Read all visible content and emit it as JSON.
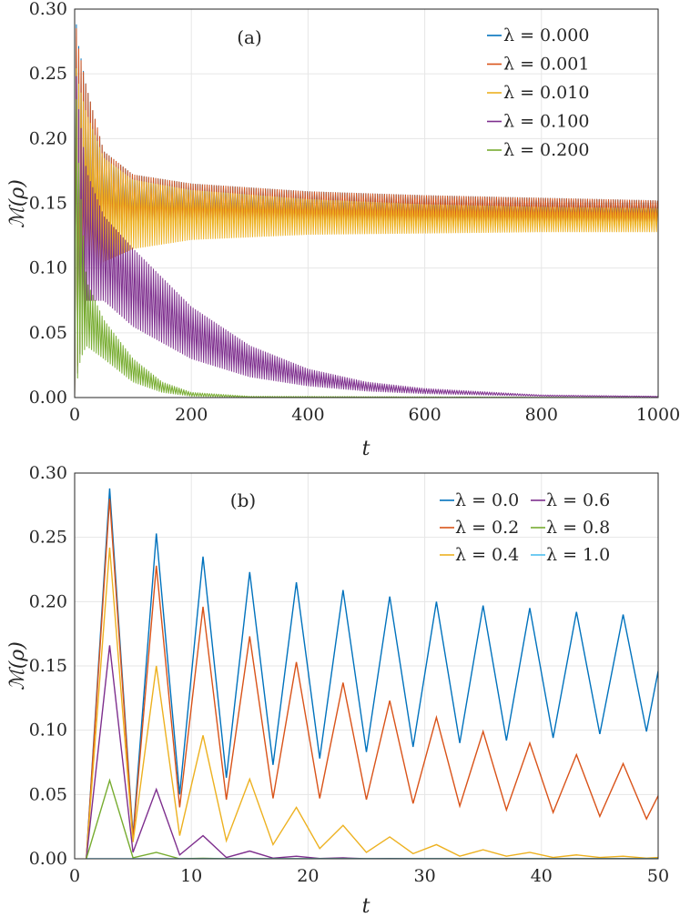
{
  "chart_data": [
    {
      "type": "line",
      "panel_label": "(a)",
      "xlabel": "t",
      "ylabel": "ℳ(ρ)",
      "xlim": [
        0,
        1000
      ],
      "ylim": [
        0,
        0.3
      ],
      "xticks": [
        "0",
        "200",
        "400",
        "600",
        "800",
        "1000"
      ],
      "yticks": [
        "0.00",
        "0.05",
        "0.10",
        "0.15",
        "0.20",
        "0.25",
        "0.30"
      ],
      "grid": true,
      "legend_position": "top-right",
      "series": [
        {
          "name": "λ = 0.000",
          "color": "#0072BD",
          "lambda": 0.0,
          "peak": 0.288,
          "band_upper": [
            [
              0,
              0.288
            ],
            [
              20,
              0.24
            ],
            [
              50,
              0.19
            ],
            [
              100,
              0.172
            ],
            [
              200,
              0.165
            ],
            [
              400,
              0.159
            ],
            [
              600,
              0.156
            ],
            [
              800,
              0.154
            ],
            [
              1000,
              0.152
            ]
          ],
          "band_lower": [
            [
              0,
              0
            ],
            [
              20,
              0.1
            ],
            [
              50,
              0.125
            ],
            [
              100,
              0.13
            ],
            [
              200,
              0.133
            ],
            [
              400,
              0.135
            ],
            [
              600,
              0.136
            ],
            [
              800,
              0.137
            ],
            [
              1000,
              0.138
            ]
          ]
        },
        {
          "name": "λ = 0.001",
          "color": "#D95319",
          "lambda": 0.001,
          "peak": 0.285,
          "band_upper": [
            [
              0,
              0.285
            ],
            [
              20,
              0.24
            ],
            [
              50,
              0.19
            ],
            [
              100,
              0.172
            ],
            [
              200,
              0.165
            ],
            [
              400,
              0.159
            ],
            [
              600,
              0.156
            ],
            [
              800,
              0.154
            ],
            [
              1000,
              0.152
            ]
          ],
          "band_lower": [
            [
              0,
              0
            ],
            [
              20,
              0.1
            ],
            [
              50,
              0.125
            ],
            [
              100,
              0.13
            ],
            [
              200,
              0.133
            ],
            [
              400,
              0.135
            ],
            [
              600,
              0.136
            ],
            [
              800,
              0.136
            ],
            [
              1000,
              0.136
            ]
          ]
        },
        {
          "name": "λ = 0.010",
          "color": "#EDB120",
          "lambda": 0.01,
          "peak": 0.254,
          "band_upper": [
            [
              0,
              0.254
            ],
            [
              20,
              0.22
            ],
            [
              50,
              0.185
            ],
            [
              100,
              0.168
            ],
            [
              200,
              0.16
            ],
            [
              400,
              0.153
            ],
            [
              600,
              0.149
            ],
            [
              800,
              0.147
            ],
            [
              1000,
              0.146
            ]
          ],
          "band_lower": [
            [
              0,
              0
            ],
            [
              20,
              0.095
            ],
            [
              50,
              0.105
            ],
            [
              100,
              0.115
            ],
            [
              200,
              0.122
            ],
            [
              400,
              0.126
            ],
            [
              600,
              0.127
            ],
            [
              800,
              0.128
            ],
            [
              1000,
              0.128
            ]
          ]
        },
        {
          "name": "λ = 0.100",
          "color": "#7E2F8E",
          "lambda": 0.1,
          "peak": 0.248,
          "band_upper": [
            [
              0,
              0.248
            ],
            [
              20,
              0.175
            ],
            [
              50,
              0.14
            ],
            [
              100,
              0.115
            ],
            [
              200,
              0.07
            ],
            [
              300,
              0.04
            ],
            [
              400,
              0.022
            ],
            [
              500,
              0.012
            ],
            [
              600,
              0.007
            ],
            [
              800,
              0.002
            ],
            [
              1000,
              0.001
            ]
          ],
          "band_lower": [
            [
              0,
              0
            ],
            [
              20,
              0.075
            ],
            [
              50,
              0.075
            ],
            [
              100,
              0.055
            ],
            [
              200,
              0.03
            ],
            [
              300,
              0.016
            ],
            [
              400,
              0.009
            ],
            [
              500,
              0.005
            ],
            [
              600,
              0.003
            ],
            [
              800,
              0.001
            ],
            [
              1000,
              0.0005
            ]
          ]
        },
        {
          "name": "λ = 0.200",
          "color": "#77AC30",
          "lambda": 0.2,
          "peak": 0.23,
          "band_upper": [
            [
              0,
              0.23
            ],
            [
              20,
              0.09
            ],
            [
              50,
              0.06
            ],
            [
              100,
              0.03
            ],
            [
              150,
              0.012
            ],
            [
              200,
              0.004
            ],
            [
              300,
              0.001
            ],
            [
              1000,
              0
            ]
          ],
          "band_lower": [
            [
              0,
              0
            ],
            [
              10,
              0.03
            ],
            [
              20,
              0.04
            ],
            [
              50,
              0.03
            ],
            [
              100,
              0.012
            ],
            [
              150,
              0.004
            ],
            [
              200,
              0.001
            ],
            [
              300,
              0
            ],
            [
              1000,
              0
            ]
          ]
        }
      ]
    },
    {
      "type": "line",
      "panel_label": "(b)",
      "xlabel": "t",
      "ylabel": "ℳ(ρ)",
      "xlim": [
        0,
        50
      ],
      "ylim": [
        0,
        0.3
      ],
      "xticks": [
        "0",
        "10",
        "20",
        "30",
        "40",
        "50"
      ],
      "yticks": [
        "0.00",
        "0.05",
        "0.10",
        "0.15",
        "0.20",
        "0.25",
        "0.30"
      ],
      "grid": true,
      "legend_position": "top-right",
      "x": [
        1,
        3,
        5,
        7,
        9,
        11,
        13,
        15,
        17,
        19,
        21,
        23,
        25,
        27,
        29,
        31,
        33,
        35,
        37,
        39,
        41,
        43,
        45,
        47,
        49,
        50
      ],
      "series": [
        {
          "name": "λ = 0.0",
          "color": "#0072BD",
          "values": [
            0,
            0.288,
            0.018,
            0.253,
            0.05,
            0.235,
            0.063,
            0.223,
            0.073,
            0.215,
            0.078,
            0.209,
            0.083,
            0.204,
            0.087,
            0.2,
            0.09,
            0.197,
            0.092,
            0.195,
            0.094,
            0.192,
            0.097,
            0.19,
            0.099,
            0.146
          ]
        },
        {
          "name": "λ = 0.2",
          "color": "#D95319",
          "values": [
            0,
            0.28,
            0.016,
            0.228,
            0.04,
            0.196,
            0.046,
            0.173,
            0.047,
            0.153,
            0.047,
            0.137,
            0.046,
            0.123,
            0.043,
            0.11,
            0.041,
            0.099,
            0.038,
            0.09,
            0.036,
            0.081,
            0.033,
            0.074,
            0.031,
            0.049
          ]
        },
        {
          "name": "λ = 0.4",
          "color": "#EDB120",
          "values": [
            0,
            0.242,
            0.013,
            0.15,
            0.018,
            0.096,
            0.014,
            0.062,
            0.011,
            0.04,
            0.008,
            0.026,
            0.005,
            0.017,
            0.004,
            0.011,
            0.002,
            0.007,
            0.002,
            0.005,
            0.001,
            0.003,
            0.001,
            0.002,
            0.0005,
            0.001
          ]
        },
        {
          "name": "λ = 0.6",
          "color": "#7E2F8E",
          "values": [
            0,
            0.166,
            0.005,
            0.054,
            0.003,
            0.018,
            0.001,
            0.006,
            0.0005,
            0.002,
            0.0002,
            0.0007,
            0,
            0.0002,
            0,
            0,
            0,
            0,
            0,
            0,
            0,
            0,
            0,
            0,
            0,
            0
          ]
        },
        {
          "name": "λ = 0.8",
          "color": "#77AC30",
          "values": [
            0,
            0.061,
            0.0008,
            0.005,
            0,
            0.0004,
            0,
            0,
            0,
            0,
            0,
            0,
            0,
            0,
            0,
            0,
            0,
            0,
            0,
            0,
            0,
            0,
            0,
            0,
            0,
            0
          ]
        },
        {
          "name": "λ = 1.0",
          "color": "#4DBEEE",
          "values": [
            0,
            0,
            0,
            0,
            0,
            0,
            0,
            0,
            0,
            0,
            0,
            0,
            0,
            0,
            0,
            0,
            0,
            0,
            0,
            0,
            0,
            0,
            0,
            0,
            0,
            0
          ]
        }
      ]
    }
  ]
}
